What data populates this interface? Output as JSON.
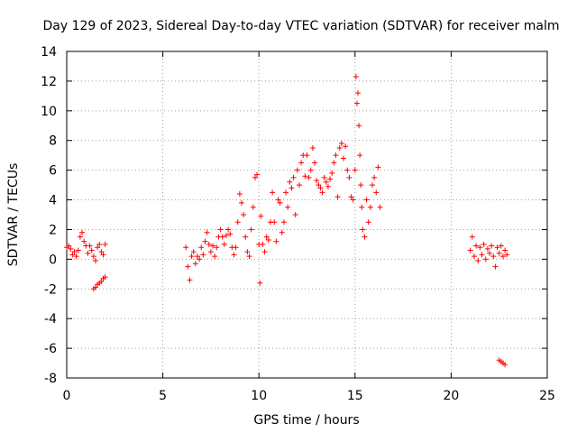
{
  "chart_data": {
    "type": "scatter",
    "title": "Day 129 of 2023, Sidereal Day-to-day VTEC variation (SDTVAR) for receiver malm",
    "xlabel": "GPS time / hours",
    "ylabel": "SDTVAR / TECUs",
    "xlim": [
      0,
      25
    ],
    "ylim": [
      -8,
      14
    ],
    "xticks": [
      0,
      5,
      10,
      15,
      20,
      25
    ],
    "yticks": [
      -8,
      -6,
      -4,
      -2,
      0,
      2,
      4,
      6,
      8,
      10,
      12,
      14
    ],
    "grid": true,
    "marker": "+",
    "color": "#ff0000",
    "series": [
      {
        "name": "SDTVAR",
        "points": [
          [
            0.0,
            0.8
          ],
          [
            0.1,
            0.9
          ],
          [
            0.2,
            0.7
          ],
          [
            0.3,
            0.3
          ],
          [
            0.4,
            0.5
          ],
          [
            0.5,
            0.2
          ],
          [
            0.6,
            0.6
          ],
          [
            0.7,
            1.5
          ],
          [
            0.8,
            1.8
          ],
          [
            0.9,
            1.2
          ],
          [
            1.0,
            0.9
          ],
          [
            1.1,
            0.4
          ],
          [
            1.2,
            0.9
          ],
          [
            1.3,
            0.6
          ],
          [
            1.4,
            0.2
          ],
          [
            1.5,
            -0.1
          ],
          [
            1.6,
            0.8
          ],
          [
            1.7,
            1.0
          ],
          [
            1.8,
            0.5
          ],
          [
            1.9,
            0.3
          ],
          [
            2.0,
            1.0
          ],
          [
            1.4,
            -2.0
          ],
          [
            1.5,
            -1.9
          ],
          [
            1.6,
            -1.7
          ],
          [
            1.7,
            -1.6
          ],
          [
            1.8,
            -1.5
          ],
          [
            1.9,
            -1.3
          ],
          [
            2.0,
            -1.2
          ],
          [
            6.2,
            0.8
          ],
          [
            6.3,
            -0.5
          ],
          [
            6.4,
            -1.4
          ],
          [
            6.5,
            0.2
          ],
          [
            6.6,
            0.5
          ],
          [
            6.7,
            -0.3
          ],
          [
            6.8,
            0.2
          ],
          [
            6.9,
            0.0
          ],
          [
            7.0,
            0.8
          ],
          [
            7.1,
            0.3
          ],
          [
            7.2,
            1.2
          ],
          [
            7.3,
            1.8
          ],
          [
            7.4,
            1.0
          ],
          [
            7.5,
            0.5
          ],
          [
            7.6,
            0.9
          ],
          [
            7.7,
            0.2
          ],
          [
            7.8,
            0.8
          ],
          [
            7.9,
            1.5
          ],
          [
            8.0,
            2.0
          ],
          [
            8.1,
            1.5
          ],
          [
            8.2,
            1.0
          ],
          [
            8.3,
            1.6
          ],
          [
            8.4,
            2.0
          ],
          [
            8.5,
            1.7
          ],
          [
            8.6,
            0.8
          ],
          [
            8.7,
            0.3
          ],
          [
            8.8,
            0.8
          ],
          [
            8.9,
            2.5
          ],
          [
            9.0,
            4.4
          ],
          [
            9.1,
            3.8
          ],
          [
            9.2,
            3.0
          ],
          [
            9.3,
            1.5
          ],
          [
            9.4,
            0.5
          ],
          [
            9.5,
            0.2
          ],
          [
            9.6,
            2.0
          ],
          [
            9.7,
            3.5
          ],
          [
            9.8,
            5.5
          ],
          [
            9.9,
            5.7
          ],
          [
            10.0,
            1.0
          ],
          [
            10.05,
            -1.6
          ],
          [
            10.1,
            2.9
          ],
          [
            10.2,
            1.0
          ],
          [
            10.3,
            0.5
          ],
          [
            10.4,
            1.5
          ],
          [
            10.5,
            1.3
          ],
          [
            10.6,
            2.5
          ],
          [
            10.7,
            4.5
          ],
          [
            10.8,
            2.5
          ],
          [
            10.9,
            1.2
          ],
          [
            11.0,
            4.0
          ],
          [
            11.1,
            3.8
          ],
          [
            11.2,
            1.8
          ],
          [
            11.3,
            2.5
          ],
          [
            11.4,
            4.5
          ],
          [
            11.5,
            3.5
          ],
          [
            11.6,
            5.2
          ],
          [
            11.7,
            4.8
          ],
          [
            11.8,
            5.5
          ],
          [
            11.9,
            3.0
          ],
          [
            12.0,
            6.0
          ],
          [
            12.1,
            5.0
          ],
          [
            12.2,
            6.5
          ],
          [
            12.3,
            7.0
          ],
          [
            12.4,
            5.6
          ],
          [
            12.5,
            7.0
          ],
          [
            12.6,
            5.5
          ],
          [
            12.7,
            6.0
          ],
          [
            12.8,
            7.5
          ],
          [
            12.9,
            6.5
          ],
          [
            13.0,
            5.3
          ],
          [
            13.1,
            5.0
          ],
          [
            13.2,
            4.8
          ],
          [
            13.3,
            4.5
          ],
          [
            13.4,
            5.5
          ],
          [
            13.5,
            5.2
          ],
          [
            13.6,
            4.9
          ],
          [
            13.7,
            5.4
          ],
          [
            13.8,
            5.8
          ],
          [
            13.9,
            6.5
          ],
          [
            14.0,
            7.0
          ],
          [
            14.1,
            4.2
          ],
          [
            14.2,
            7.5
          ],
          [
            14.3,
            7.8
          ],
          [
            14.4,
            6.8
          ],
          [
            14.5,
            7.6
          ],
          [
            14.6,
            6.0
          ],
          [
            14.7,
            5.5
          ],
          [
            14.8,
            4.2
          ],
          [
            14.9,
            4.0
          ],
          [
            15.0,
            6.0
          ],
          [
            15.05,
            12.3
          ],
          [
            15.1,
            10.5
          ],
          [
            15.15,
            11.2
          ],
          [
            15.2,
            9.0
          ],
          [
            15.25,
            7.0
          ],
          [
            15.3,
            5.0
          ],
          [
            15.35,
            3.5
          ],
          [
            15.4,
            2.0
          ],
          [
            15.5,
            1.5
          ],
          [
            15.6,
            4.0
          ],
          [
            15.7,
            2.5
          ],
          [
            15.8,
            3.5
          ],
          [
            15.9,
            5.0
          ],
          [
            16.0,
            5.5
          ],
          [
            16.1,
            4.5
          ],
          [
            16.2,
            6.2
          ],
          [
            16.3,
            3.5
          ],
          [
            21.0,
            0.6
          ],
          [
            21.1,
            1.5
          ],
          [
            21.2,
            0.2
          ],
          [
            21.3,
            0.9
          ],
          [
            21.4,
            -0.1
          ],
          [
            21.5,
            0.8
          ],
          [
            21.6,
            0.3
          ],
          [
            21.7,
            1.0
          ],
          [
            21.8,
            0.0
          ],
          [
            21.9,
            0.7
          ],
          [
            22.0,
            0.4
          ],
          [
            22.1,
            0.9
          ],
          [
            22.2,
            0.2
          ],
          [
            22.3,
            -0.5
          ],
          [
            22.4,
            0.8
          ],
          [
            22.5,
            0.4
          ],
          [
            22.6,
            0.9
          ],
          [
            22.7,
            0.2
          ],
          [
            22.8,
            0.6
          ],
          [
            22.9,
            0.3
          ],
          [
            22.5,
            -6.8
          ],
          [
            22.6,
            -6.9
          ],
          [
            22.7,
            -7.0
          ],
          [
            22.8,
            -7.1
          ]
        ]
      }
    ]
  }
}
